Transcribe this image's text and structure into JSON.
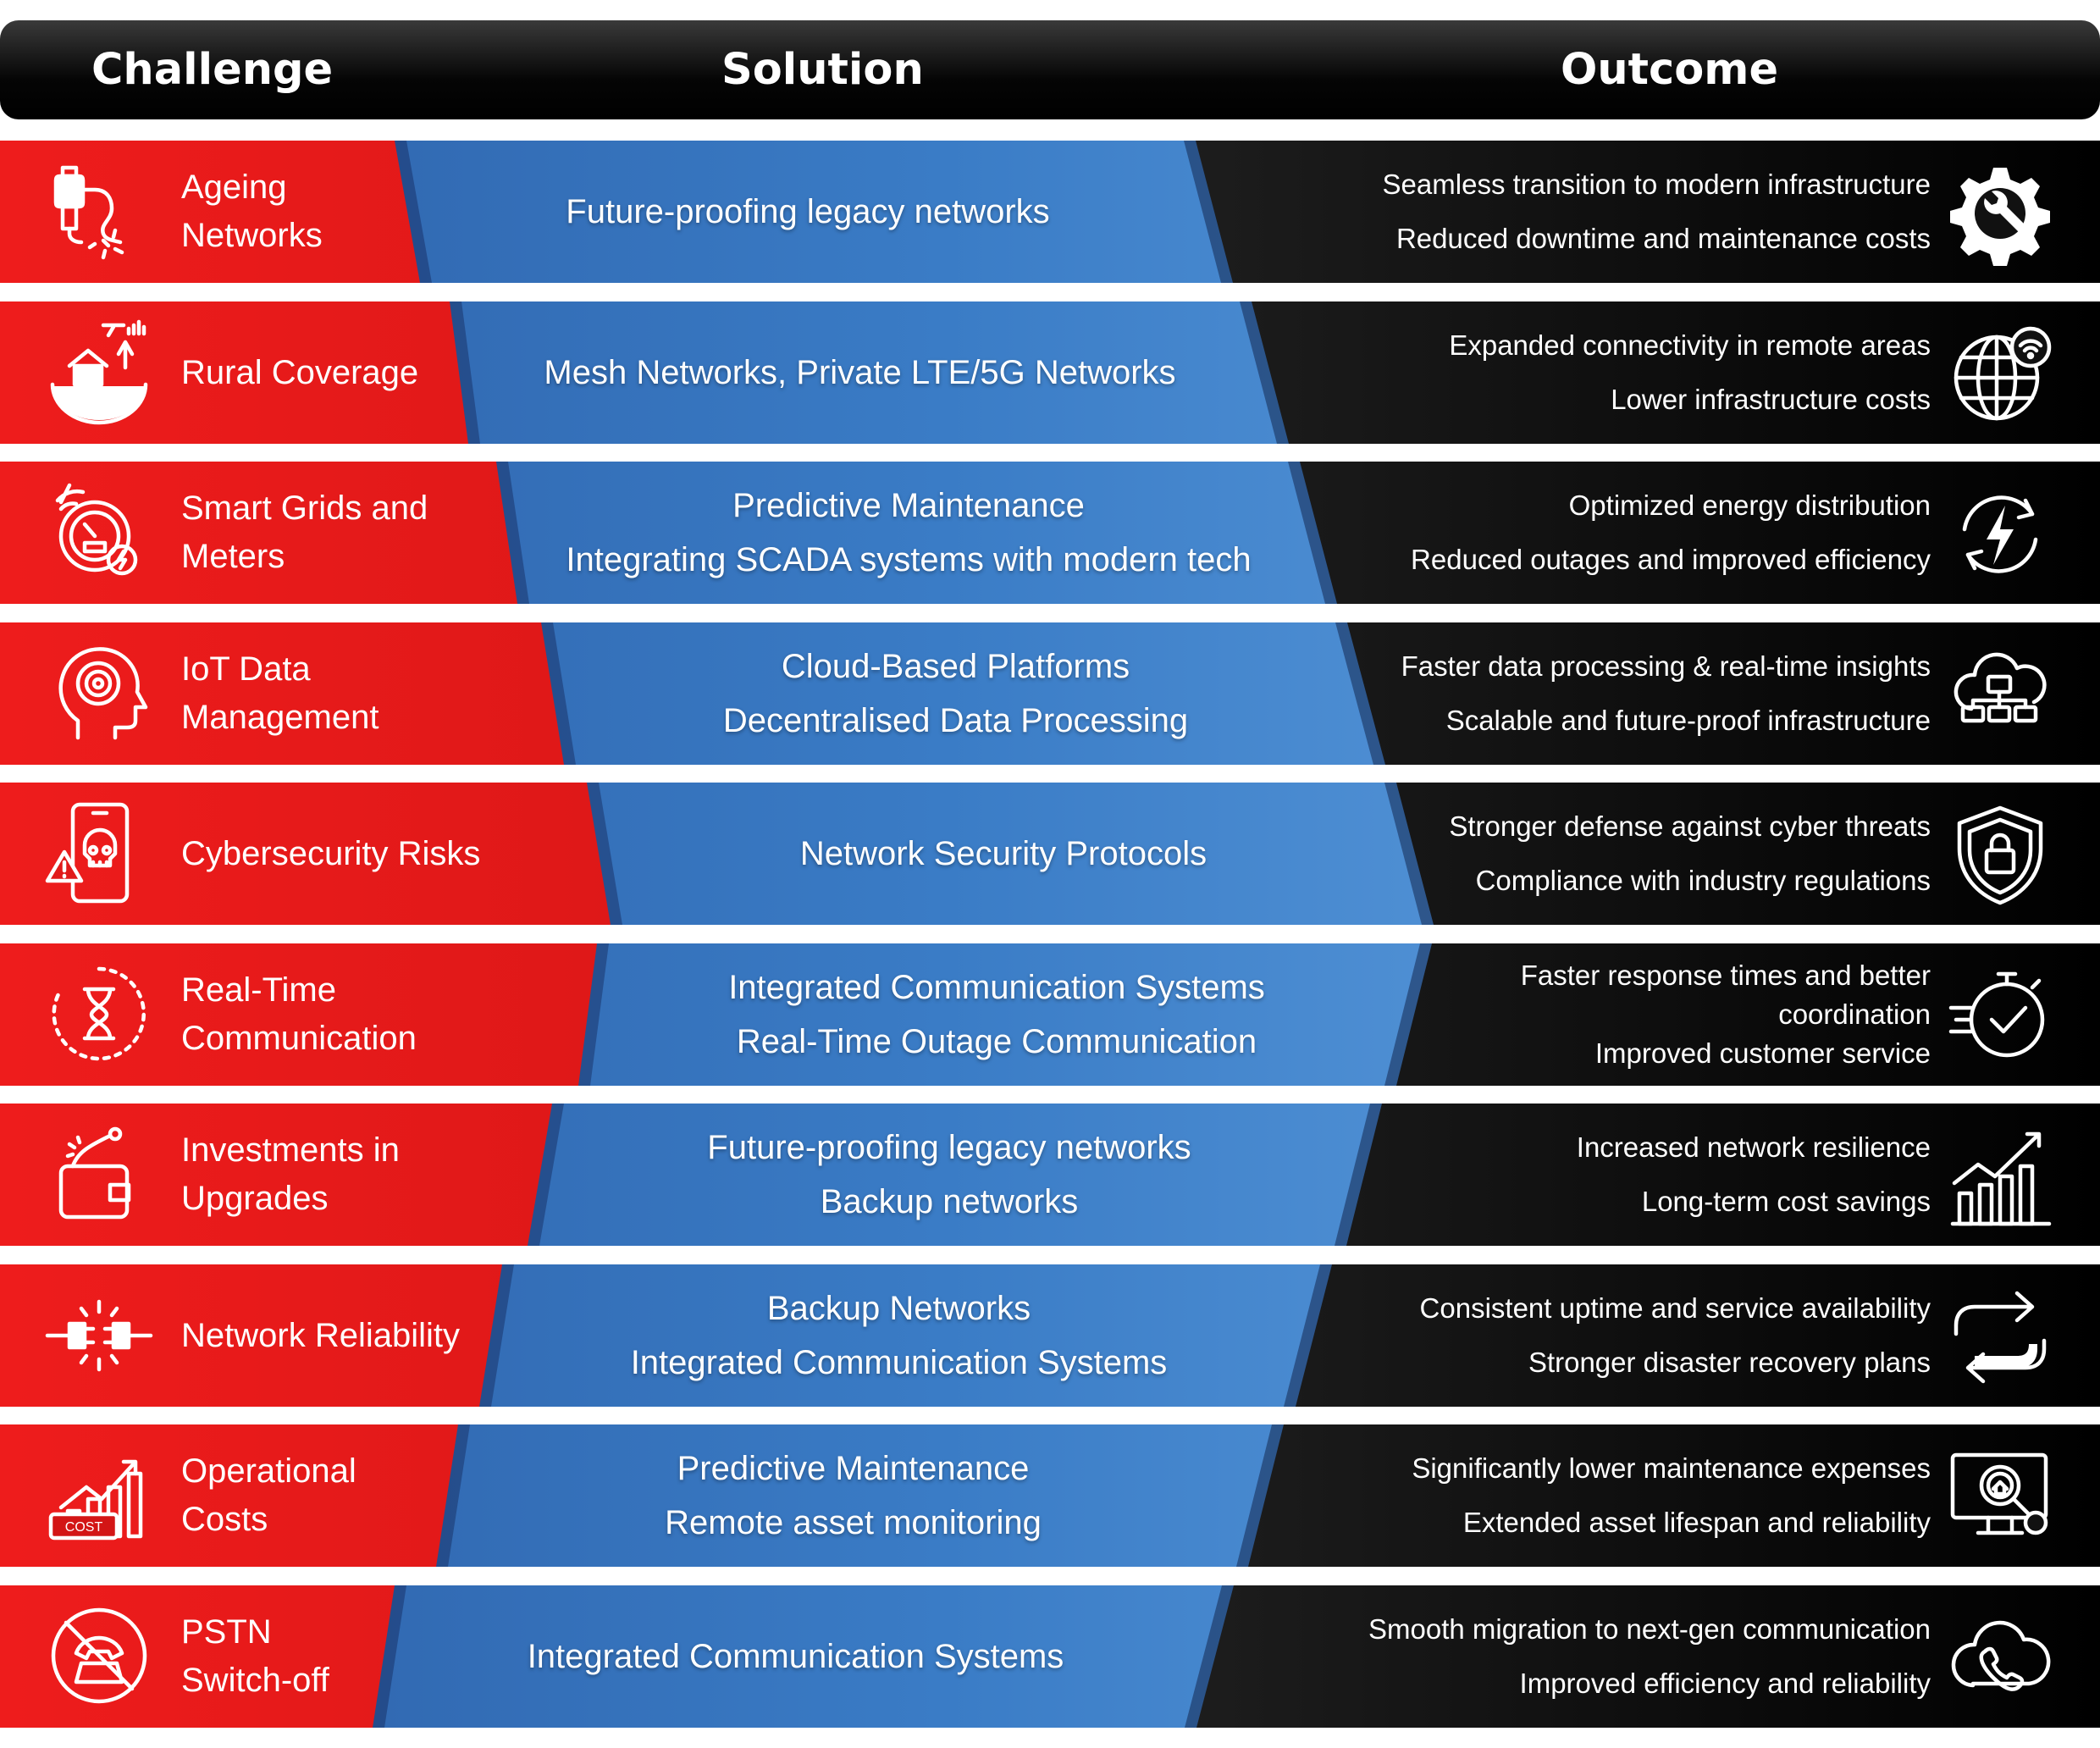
{
  "header": {
    "challenge": "Challenge",
    "solution": "Solution",
    "outcome": "Outcome"
  },
  "colors": {
    "challenge_red": "#e11a1a",
    "solution_blue": "#3a7cc6",
    "outcome_dark": "#1a1a1a",
    "header_black": "#000000"
  },
  "rows": [
    {
      "challenge": "Ageing\nNetworks",
      "challenge_icon": "unplugged-cable-icon",
      "solution": [
        "Future-proofing legacy networks"
      ],
      "outcomes": [
        "Seamless transition to modern infrastructure",
        "Reduced downtime and maintenance costs"
      ],
      "outcome_icon": "gear-wrench-icon"
    },
    {
      "challenge": "Rural Coverage",
      "challenge_icon": "rural-house-globe-icon",
      "solution": [
        "Mesh Networks, Private LTE/5G Networks"
      ],
      "outcomes": [
        "Expanded connectivity in remote areas",
        "Lower infrastructure costs"
      ],
      "outcome_icon": "globe-wifi-icon"
    },
    {
      "challenge": "Smart Grids and\nMeters",
      "challenge_icon": "smart-meter-icon",
      "solution": [
        "Predictive Maintenance",
        "Integrating SCADA systems with modern tech"
      ],
      "outcomes": [
        "Optimized energy distribution",
        "Reduced outages and improved efficiency"
      ],
      "outcome_icon": "energy-cycle-icon"
    },
    {
      "challenge": "IoT Data\nManagement",
      "challenge_icon": "head-data-icon",
      "solution": [
        "Cloud-Based Platforms",
        "Decentralised Data Processing"
      ],
      "outcomes": [
        "Faster data processing & real-time insights",
        "Scalable and future-proof infrastructure"
      ],
      "outcome_icon": "cloud-network-icon"
    },
    {
      "challenge": "Cybersecurity Risks",
      "challenge_icon": "phone-threat-icon",
      "solution": [
        "Network Security Protocols"
      ],
      "outcomes": [
        "Stronger defense against cyber threats",
        "Compliance with industry regulations"
      ],
      "outcome_icon": "shield-lock-icon"
    },
    {
      "challenge": "Real-Time\nCommunication",
      "challenge_icon": "hourglass-timer-icon",
      "solution": [
        "Integrated Communication Systems",
        "Real-Time Outage Communication"
      ],
      "outcomes": [
        "Faster response times and better",
        "coordination",
        "Improved customer service"
      ],
      "outcome_icon": "stopwatch-check-icon"
    },
    {
      "challenge": "Investments in\nUpgrades",
      "challenge_icon": "wallet-investment-icon",
      "solution": [
        "Future-proofing legacy networks",
        "Backup networks"
      ],
      "outcomes": [
        "Increased network resilience",
        "Long-term cost savings"
      ],
      "outcome_icon": "growth-chart-icon"
    },
    {
      "challenge": "Network Reliability",
      "challenge_icon": "plug-connect-icon",
      "solution": [
        "Backup Networks",
        "Integrated Communication Systems"
      ],
      "outcomes": [
        "Consistent uptime and service availability",
        "Stronger disaster recovery plans"
      ],
      "outcome_icon": "sync-arrows-icon"
    },
    {
      "challenge": "Operational\nCosts",
      "challenge_icon": "cost-chart-icon",
      "solution": [
        "Predictive Maintenance",
        "Remote asset monitoring"
      ],
      "outcomes": [
        "Significantly lower maintenance expenses",
        "Extended asset lifespan and reliability"
      ],
      "outcome_icon": "monitor-inspect-icon"
    },
    {
      "challenge": "PSTN\nSwitch-off",
      "challenge_icon": "phone-disabled-icon",
      "solution": [
        "Integrated Communication Systems"
      ],
      "outcomes": [
        "Smooth migration to next-gen communication",
        "Improved efficiency and reliability"
      ],
      "outcome_icon": "cloud-phone-icon"
    }
  ]
}
